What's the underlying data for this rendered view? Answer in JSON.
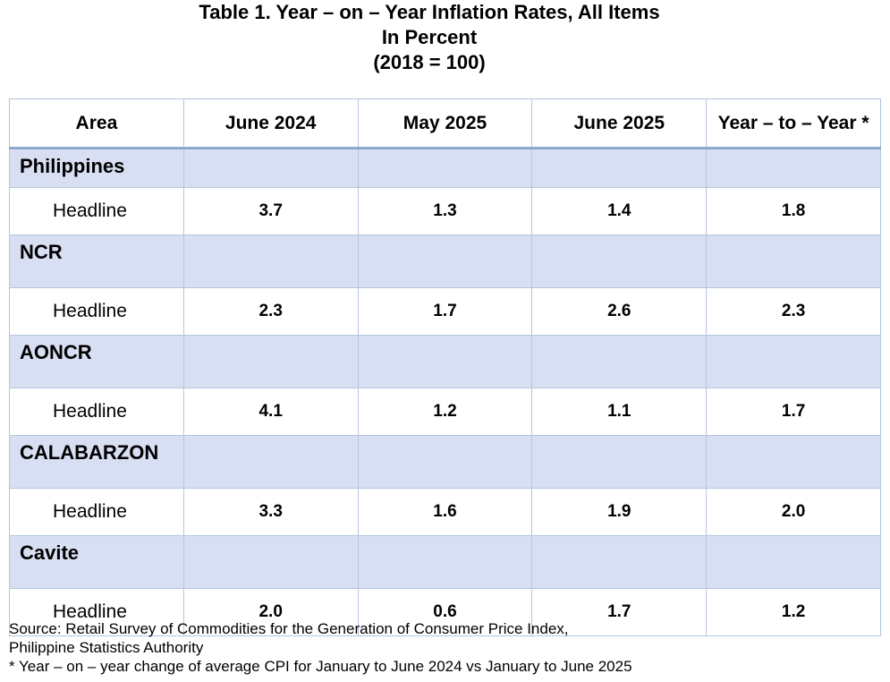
{
  "title": {
    "line1": "Table 1. Year – on – Year Inflation Rates, All Items",
    "line2": "In Percent",
    "line3": "(2018 = 100)"
  },
  "table": {
    "headers": [
      "Area",
      "June 2024",
      "May 2025",
      "June 2025",
      "Year – to – Year *"
    ],
    "areas": [
      {
        "name": "Philippines",
        "row_label": "Headline",
        "values": [
          "3.7",
          "1.3",
          "1.4",
          "1.8"
        ]
      },
      {
        "name": "NCR",
        "row_label": "Headline",
        "values": [
          "2.3",
          "1.7",
          "2.6",
          "2.3"
        ]
      },
      {
        "name": "AONCR",
        "row_label": "Headline",
        "values": [
          "4.1",
          "1.2",
          "1.1",
          "1.7"
        ]
      },
      {
        "name": "CALABARZON",
        "row_label": "Headline",
        "values": [
          "3.3",
          "1.6",
          "1.9",
          "2.0"
        ]
      },
      {
        "name": "Cavite",
        "row_label": "Headline",
        "values": [
          "2.0",
          "0.6",
          "1.7",
          "1.2"
        ]
      }
    ]
  },
  "footnotes": {
    "source_line1": "Source: Retail Survey of Commodities for the Generation of Consumer Price Index,",
    "source_line2": "Philippine Statistics Authority",
    "note": "* Year – on – year change of average CPI for January to June 2024 vs January to June 2025"
  },
  "colors": {
    "area_row_fill": "#d9dff3",
    "grid_line": "#b4c6df",
    "header_rule": "#8ea9cf"
  }
}
